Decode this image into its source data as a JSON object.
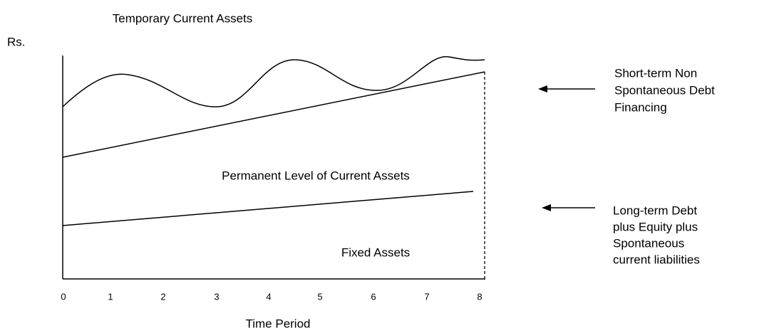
{
  "top_label": "Temporary Current Assets",
  "y_axis_label": "Rs.",
  "x_axis_label": "Time Period",
  "x_ticks": [
    0,
    1,
    2,
    3,
    4,
    5,
    6,
    7,
    8
  ],
  "regions": {
    "permanent": "Permanent Level of Current Assets",
    "fixed": "Fixed Assets"
  },
  "financing": {
    "short_term": [
      "Short-term Non",
      "Spontaneous Debt",
      "Financing"
    ],
    "long_term": [
      "Long-term Debt",
      "plus Equity plus",
      "Spontaneous",
      "current liabilities"
    ]
  }
}
